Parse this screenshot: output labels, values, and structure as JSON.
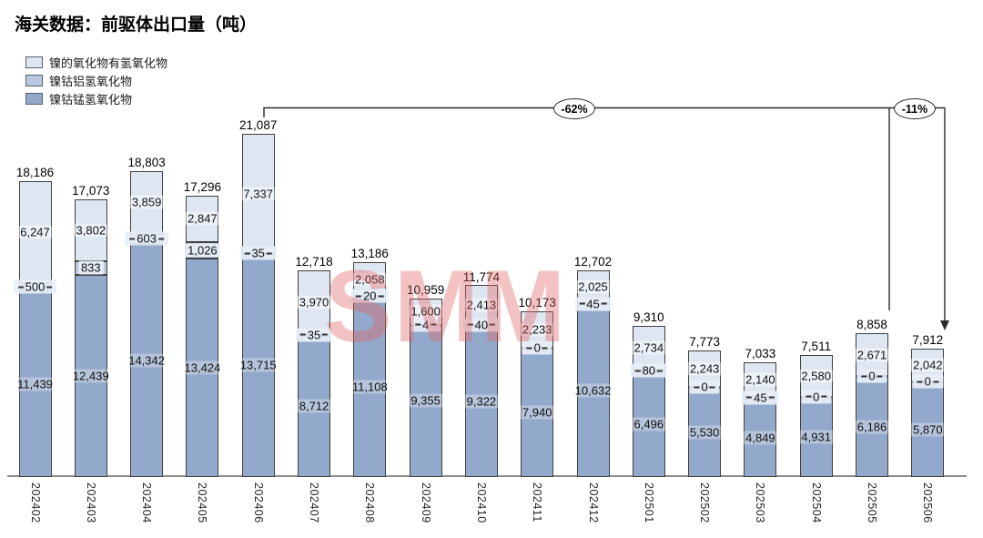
{
  "title": "海关数据：前驱体出口量（吨）",
  "watermark": "SMM",
  "legend": [
    {
      "label": "镍的氧化物有氢氧化物",
      "color": "#dde6f1"
    },
    {
      "label": "镍钴铝氢氧化物",
      "color": "#b9c8de"
    },
    {
      "label": "镍钴锰氢氧化物",
      "color": "#93a9cb"
    }
  ],
  "annotations": [
    {
      "label": "-62%",
      "from": "202406",
      "to": "202506"
    },
    {
      "label": "-11%",
      "from": "202505",
      "to": "202506"
    }
  ],
  "chart_data": {
    "type": "bar",
    "stacked": true,
    "title": "海关数据：前驱体出口量（吨）",
    "xlabel": "",
    "ylabel": "",
    "grid": false,
    "y_axis_visible": false,
    "legend_position": "top-left",
    "categories": [
      "202402",
      "202403",
      "202404",
      "202405",
      "202406",
      "202407",
      "202408",
      "202409",
      "202410",
      "202411",
      "202412",
      "202501",
      "202502",
      "202503",
      "202504",
      "202505",
      "202506"
    ],
    "series": [
      {
        "key": "ncm",
        "name": "镍钴锰氢氧化物",
        "color": "#93a9cb",
        "values": [
          11439,
          12439,
          14342,
          13424,
          13715,
          8712,
          11108,
          9355,
          9322,
          7940,
          10632,
          6496,
          5530,
          4849,
          4931,
          6186,
          5870
        ]
      },
      {
        "key": "nca",
        "name": "镍钴铝氢氧化物",
        "color": "#b9c8de",
        "values": [
          500,
          833,
          603,
          1026,
          35,
          35,
          20,
          4,
          40,
          0,
          45,
          80,
          0,
          45,
          0,
          0,
          0
        ]
      },
      {
        "key": "ni-oxide-hydroxide",
        "name": "镍的氧化物有氢氧化物",
        "color": "#dde6f1",
        "values": [
          6247,
          3802,
          3859,
          2847,
          7337,
          3970,
          2058,
          1600,
          2413,
          2233,
          2025,
          2734,
          2243,
          2140,
          2580,
          2671,
          2042
        ]
      }
    ],
    "totals": [
      18186,
      17073,
      18803,
      17296,
      21087,
      12718,
      13186,
      10959,
      11774,
      10173,
      12702,
      9310,
      7773,
      7033,
      7511,
      8858,
      7912
    ]
  }
}
